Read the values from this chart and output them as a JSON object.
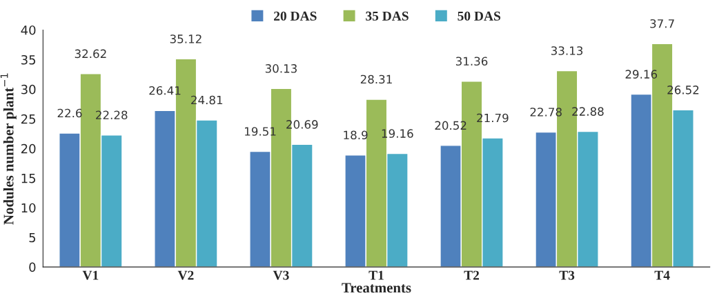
{
  "chart_data": {
    "type": "bar",
    "xlabel": "Treatments",
    "ylabel": "Nodules number plant$^{−1}$",
    "categories": [
      "V1",
      "V2",
      "V3",
      "T1",
      "T2",
      "T3",
      "T4"
    ],
    "series": [
      {
        "name": "20 DAS",
        "color": "#4f81bd",
        "values": [
          22.6,
          26.41,
          19.51,
          18.9,
          20.52,
          22.78,
          29.16
        ]
      },
      {
        "name": "35 DAS",
        "color": "#9bbb59",
        "values": [
          32.62,
          35.12,
          30.13,
          28.31,
          31.36,
          33.13,
          37.7
        ]
      },
      {
        "name": "50 DAS",
        "color": "#4bacc6",
        "values": [
          22.28,
          24.81,
          20.69,
          19.16,
          21.79,
          22.88,
          26.52
        ]
      }
    ],
    "ylim": [
      0,
      40
    ],
    "yticks": [
      0,
      5,
      10,
      15,
      20,
      25,
      30,
      35,
      40
    ],
    "data_labels": true,
    "legend": "top",
    "grid": false
  }
}
